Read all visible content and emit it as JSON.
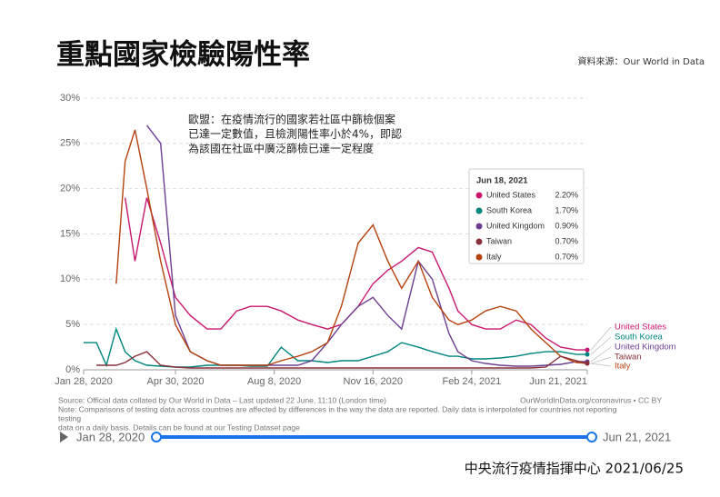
{
  "chart_data": {
    "type": "line",
    "title": "重點國家檢驗陽性率",
    "source_label": "資料來源：Our World in Data",
    "annotation": [
      "歐盟：在疫情流行的國家若社區中篩檢個案",
      "已達一定數值，且檢測陽性率小於4%，即認",
      "為該國在社區中廣泛篩檢已達一定程度"
    ],
    "x": [
      "2020-01-28",
      "2020-02-10",
      "2020-02-20",
      "2020-03-01",
      "2020-03-10",
      "2020-03-20",
      "2020-04-01",
      "2020-04-15",
      "2020-04-30",
      "2020-05-15",
      "2020-06-01",
      "2020-06-15",
      "2020-07-01",
      "2020-07-15",
      "2020-08-01",
      "2020-08-15",
      "2020-09-01",
      "2020-09-15",
      "2020-10-01",
      "2020-10-15",
      "2020-11-01",
      "2020-11-16",
      "2020-12-01",
      "2020-12-15",
      "2021-01-01",
      "2021-01-15",
      "2021-02-01",
      "2021-02-10",
      "2021-02-24",
      "2021-03-10",
      "2021-03-25",
      "2021-04-10",
      "2021-04-25",
      "2021-05-10",
      "2021-05-25",
      "2021-06-10",
      "2021-06-21"
    ],
    "xlim": [
      "2020-01-28",
      "2021-06-21"
    ],
    "xticks": [
      {
        "value": "2020-01-28",
        "label": "Jan 28, 2020"
      },
      {
        "value": "2020-04-30",
        "label": "Apr 30, 2020"
      },
      {
        "value": "2020-08-08",
        "label": "Aug 8, 2020"
      },
      {
        "value": "2020-11-16",
        "label": "Nov 16, 2020"
      },
      {
        "value": "2021-02-24",
        "label": "Feb 24, 2021"
      },
      {
        "value": "2021-06-21",
        "label": "Jun 21, 2021"
      }
    ],
    "ylim": [
      0,
      30
    ],
    "yticks": [
      {
        "value": 0,
        "label": "0%"
      },
      {
        "value": 5,
        "label": "5%"
      },
      {
        "value": 10,
        "label": "10%"
      },
      {
        "value": 15,
        "label": "15%"
      },
      {
        "value": 20,
        "label": "20%"
      },
      {
        "value": 25,
        "label": "25%"
      },
      {
        "value": 30,
        "label": "30%"
      }
    ],
    "grid": true,
    "series": [
      {
        "name": "United States",
        "color": "#c8176f",
        "values": [
          null,
          null,
          null,
          null,
          19,
          12,
          19,
          14,
          8,
          6,
          4.5,
          4.5,
          6.5,
          7,
          7,
          6.5,
          5.5,
          5,
          4.5,
          5,
          7,
          9.5,
          11,
          12,
          13.5,
          13,
          9,
          6.5,
          5,
          4.5,
          4.5,
          5.5,
          5,
          3.5,
          2.5,
          2.2,
          2.2
        ]
      },
      {
        "name": "South Korea",
        "color": "#00847e",
        "values": [
          3,
          3,
          0.5,
          4.5,
          2,
          1,
          0.5,
          0.4,
          0.3,
          0.3,
          0.5,
          0.5,
          0.5,
          0.4,
          0.4,
          2.5,
          1,
          1,
          0.8,
          1,
          1,
          1.5,
          2,
          3,
          2.5,
          2,
          1.5,
          1.5,
          1.2,
          1.2,
          1.3,
          1.5,
          1.8,
          2,
          2,
          1.7,
          1.7
        ]
      },
      {
        "name": "United Kingdom",
        "color": "#6d3e91",
        "values": [
          null,
          null,
          null,
          null,
          null,
          null,
          27,
          25,
          6,
          2,
          1,
          0.5,
          0.5,
          0.5,
          0.5,
          0.5,
          0.5,
          1,
          3,
          5,
          7,
          8,
          6,
          4.5,
          12,
          10,
          4,
          2,
          1,
          0.7,
          0.5,
          0.4,
          0.4,
          0.5,
          0.6,
          0.9,
          0.9
        ]
      },
      {
        "name": "Italy",
        "color": "#b5420f",
        "values": [
          null,
          null,
          null,
          9.5,
          23,
          26.5,
          20,
          12,
          5,
          2,
          1,
          0.5,
          0.5,
          0.5,
          0.5,
          1,
          1.5,
          2,
          3,
          7,
          14,
          16,
          12,
          9,
          12,
          8,
          5.5,
          5,
          5.5,
          6.5,
          7,
          6.5,
          4.5,
          3,
          1.5,
          0.8,
          0.7
        ]
      },
      {
        "name": "Taiwan",
        "color": "#883039",
        "values": [
          null,
          0.5,
          0.5,
          0.5,
          0.8,
          1.5,
          2,
          0.5,
          0.3,
          0.2,
          0.2,
          0.2,
          0.2,
          0.2,
          0.2,
          0.2,
          0.2,
          0.2,
          0.2,
          0.2,
          0.2,
          0.2,
          0.2,
          0.2,
          0.2,
          0.2,
          0.2,
          0.2,
          0.2,
          0.2,
          0.2,
          0.2,
          0.2,
          0.3,
          1.5,
          1,
          0.7
        ]
      }
    ],
    "tooltip": {
      "date": "Jun 18, 2021",
      "series_order": [
        0,
        1,
        2,
        4,
        3
      ],
      "values": [
        2.2,
        1.7,
        0.9,
        0.7,
        0.7
      ],
      "value_labels": [
        "2.20%",
        "1.70%",
        "0.90%",
        "0.70%",
        "0.70%"
      ]
    },
    "source": "Source: Official data collated by Our World in Data – Last updated 22 June, 11:10 (London time)",
    "credit": "OurWorldInData.org/coronavirus • CC BY",
    "note": [
      "Note: Comparisons of testing data across countries are affected by differences in the way the data are reported. Daily data is interpolated for countries not reporting",
      "testing",
      "data on a daily basis. Details can be found at our Testing Dataset page"
    ],
    "footer": "中央流行疫情指揮中心 2021/06/25"
  }
}
